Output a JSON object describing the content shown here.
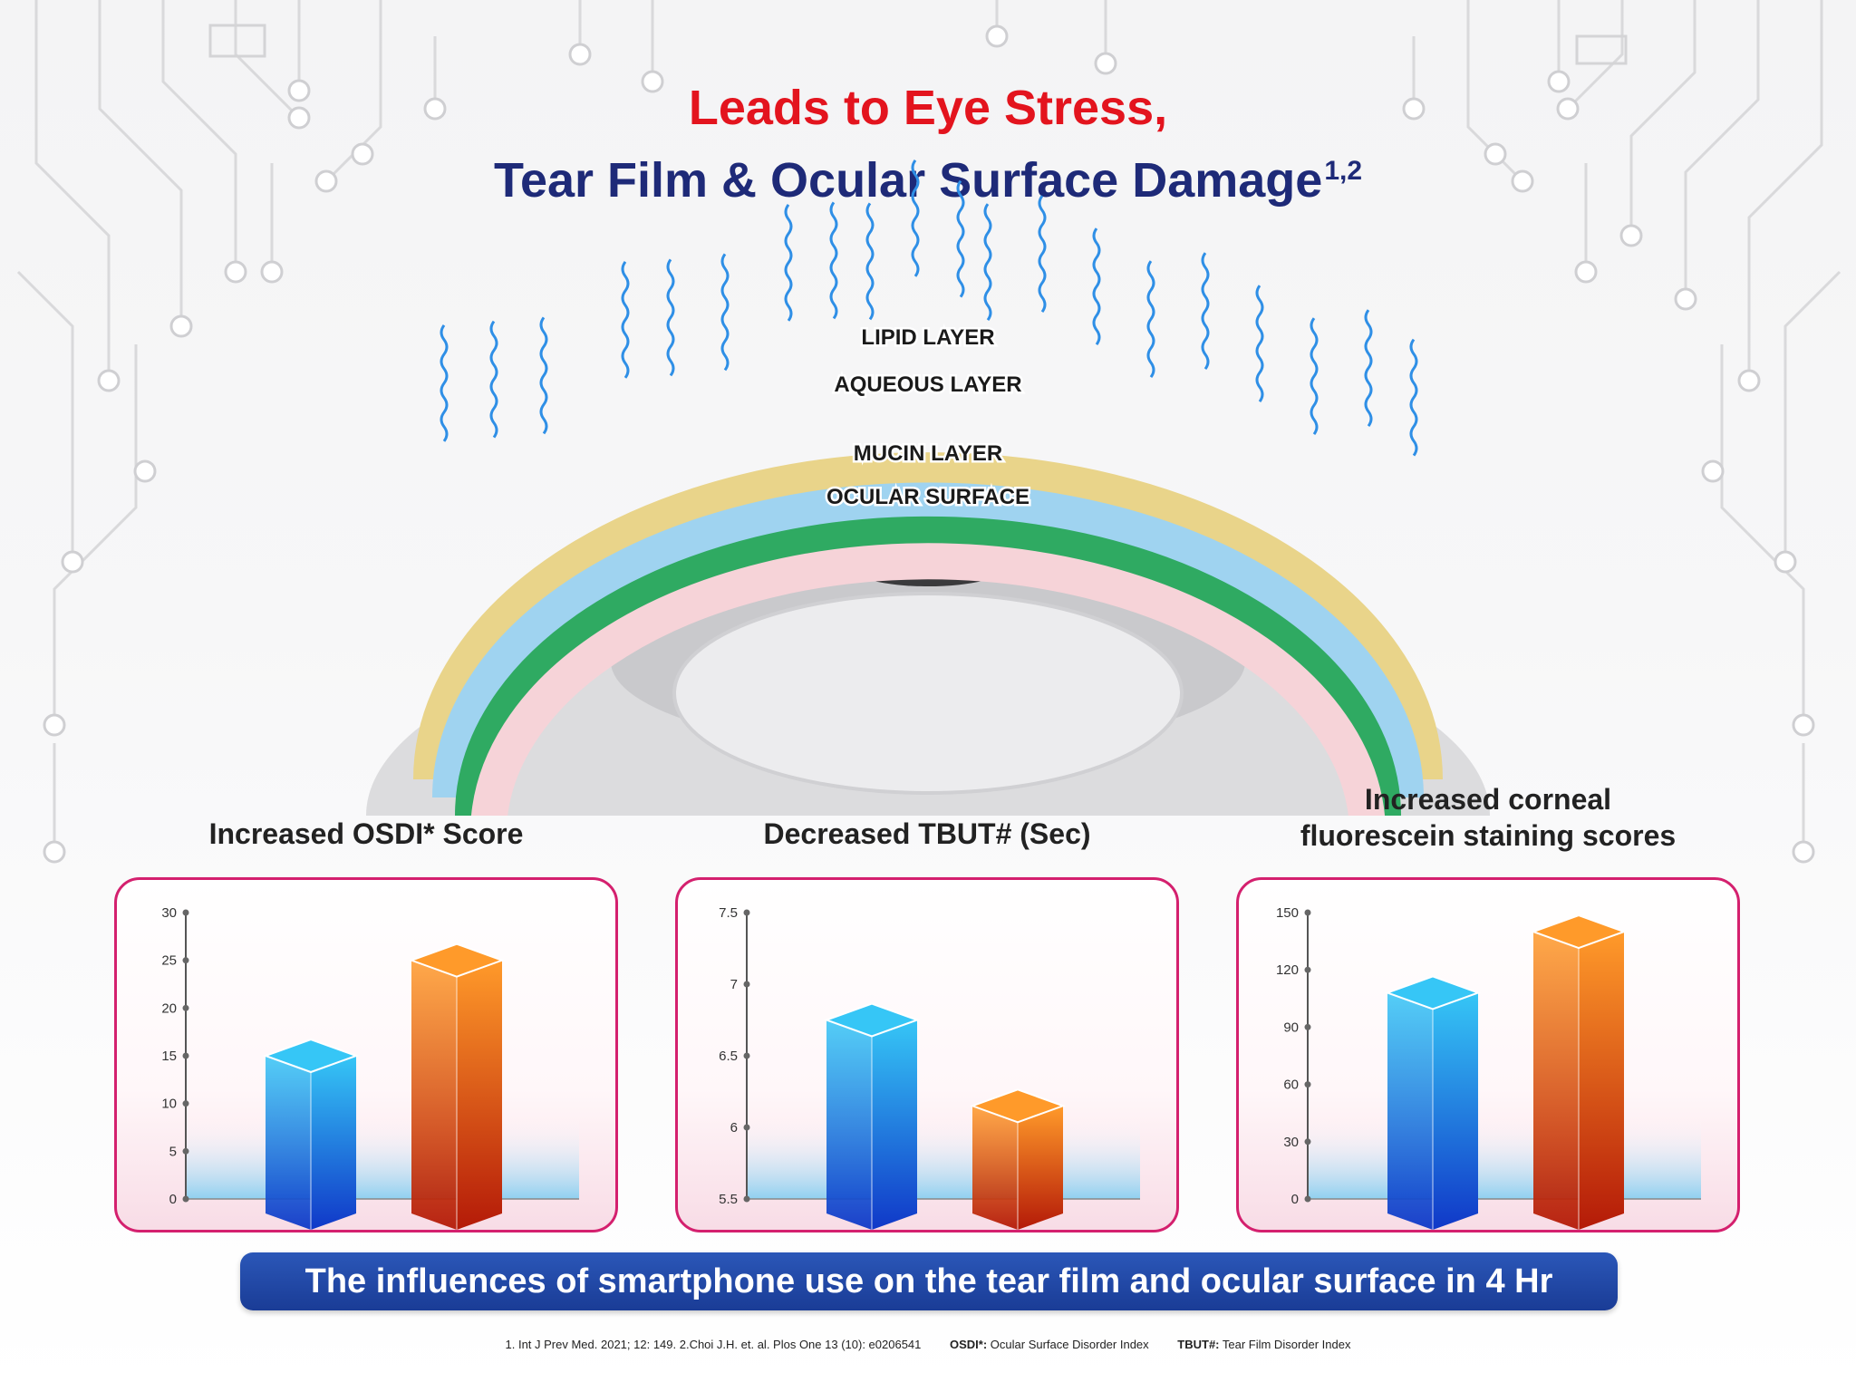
{
  "header": {
    "line1": "Leads to Eye Stress,",
    "line2": "Tear Film & Ocular Surface Damage",
    "line2_sup": "1,2"
  },
  "eye_diagram": {
    "layers": [
      "LIPID LAYER",
      "AQUEOUS LAYER",
      "MUCIN LAYER",
      "OCULAR SURFACE"
    ],
    "colors": {
      "lipid": "#e9d48a",
      "aqueous": "#9fd3f0",
      "mucin": "#2faa62",
      "surface": "#f6d3d8"
    }
  },
  "chart_titles": [
    [
      "Increased OSDI* Score"
    ],
    [
      "Decreased TBUT# (Sec)"
    ],
    [
      "Increased corneal",
      "fluorescein staining scores"
    ]
  ],
  "chart_data": [
    {
      "type": "bar",
      "title": "Increased OSDI* Score",
      "categories": [
        "",
        ""
      ],
      "values": [
        15,
        25
      ],
      "ylim": [
        0,
        30
      ],
      "yticks": [
        "0",
        "5",
        "10",
        "15",
        "20",
        "25",
        "30"
      ],
      "bar_colors": [
        "#1a7fe0",
        "#e8500a"
      ]
    },
    {
      "type": "bar",
      "title": "Decreased TBUT# (Sec)",
      "categories": [
        "",
        ""
      ],
      "values": [
        6.75,
        6.15
      ],
      "ylim": [
        5.5,
        7.5
      ],
      "yticks": [
        "5.5",
        "6",
        "6.5",
        "7",
        "7.5"
      ],
      "bar_colors": [
        "#1a7fe0",
        "#e8500a"
      ]
    },
    {
      "type": "bar",
      "title": "Increased corneal fluorescein staining scores",
      "categories": [
        "",
        ""
      ],
      "values": [
        108,
        140
      ],
      "ylim": [
        0,
        150
      ],
      "yticks": [
        "0",
        "30",
        "60",
        "90",
        "120",
        "150"
      ],
      "bar_colors": [
        "#1a7fe0",
        "#e8500a"
      ]
    }
  ],
  "banner": "The influences of smartphone use on the tear film and ocular surface in 4 Hr",
  "references": {
    "ref1": "1. Int J Prev Med. 2021; 12: 149. 2.Choi J.H. et. al. Plos One 13 (10): e0206541",
    "osdi_term": "OSDI*:",
    "osdi_def": " Ocular Surface Disorder Index",
    "tbut_term": "TBUT#:",
    "tbut_def": " Tear Film Disorder Index"
  }
}
